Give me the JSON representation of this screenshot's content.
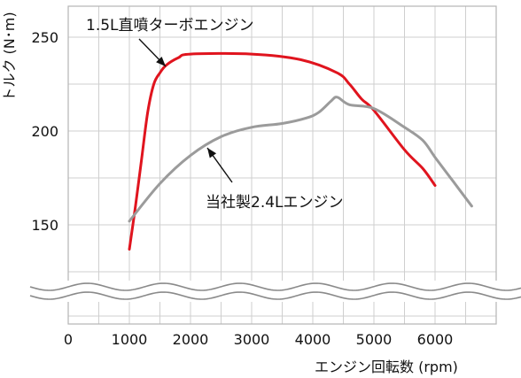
{
  "chart_data": {
    "type": "line",
    "xlabel": "エンジン回転数 (rpm)",
    "ylabel": "トルク (N･m)",
    "x_ticks": [
      "0",
      "1000",
      "2000",
      "3000",
      "4000",
      "5000",
      "6000"
    ],
    "y_ticks": [
      "150",
      "200",
      "250"
    ],
    "xlim": [
      0,
      7000
    ],
    "ylim": [
      125,
      262
    ],
    "grid": true,
    "axis_break": "wavy band between 0 and 150 on the y axis",
    "series": [
      {
        "name": "1.5L直噴ターボエンジン",
        "color": "#e0141e",
        "x": [
          1000,
          1100,
          1200,
          1300,
          1400,
          1500,
          1600,
          1800,
          2000,
          3000,
          3800,
          4400,
          4600,
          4800,
          5000,
          5500,
          5800,
          6000
        ],
        "y": [
          137,
          160,
          185,
          210,
          225,
          231,
          235,
          239,
          241,
          241,
          238,
          231,
          225,
          217,
          211,
          190,
          180,
          171
        ]
      },
      {
        "name": "当社製2.4Lエンジン",
        "color": "#9b9b9b",
        "x": [
          1000,
          1500,
          2000,
          2500,
          3000,
          3500,
          3900,
          4100,
          4300,
          4400,
          4600,
          5000,
          5500,
          5800,
          6000,
          6300,
          6600
        ],
        "y": [
          152,
          172,
          187,
          197,
          202,
          204,
          207,
          210,
          216,
          218,
          214,
          212,
          202,
          195,
          186,
          173,
          160
        ]
      }
    ],
    "annotations": [
      {
        "text": "1.5L直噴ターボエンジン",
        "series": 0
      },
      {
        "text": "当社製2.4Lエンジン",
        "series": 1
      }
    ],
    "colors": {
      "turbo": "#e0141e",
      "na": "#9b9b9b",
      "grid": "#cfcfcf",
      "frame": "#b4b4b4"
    }
  }
}
